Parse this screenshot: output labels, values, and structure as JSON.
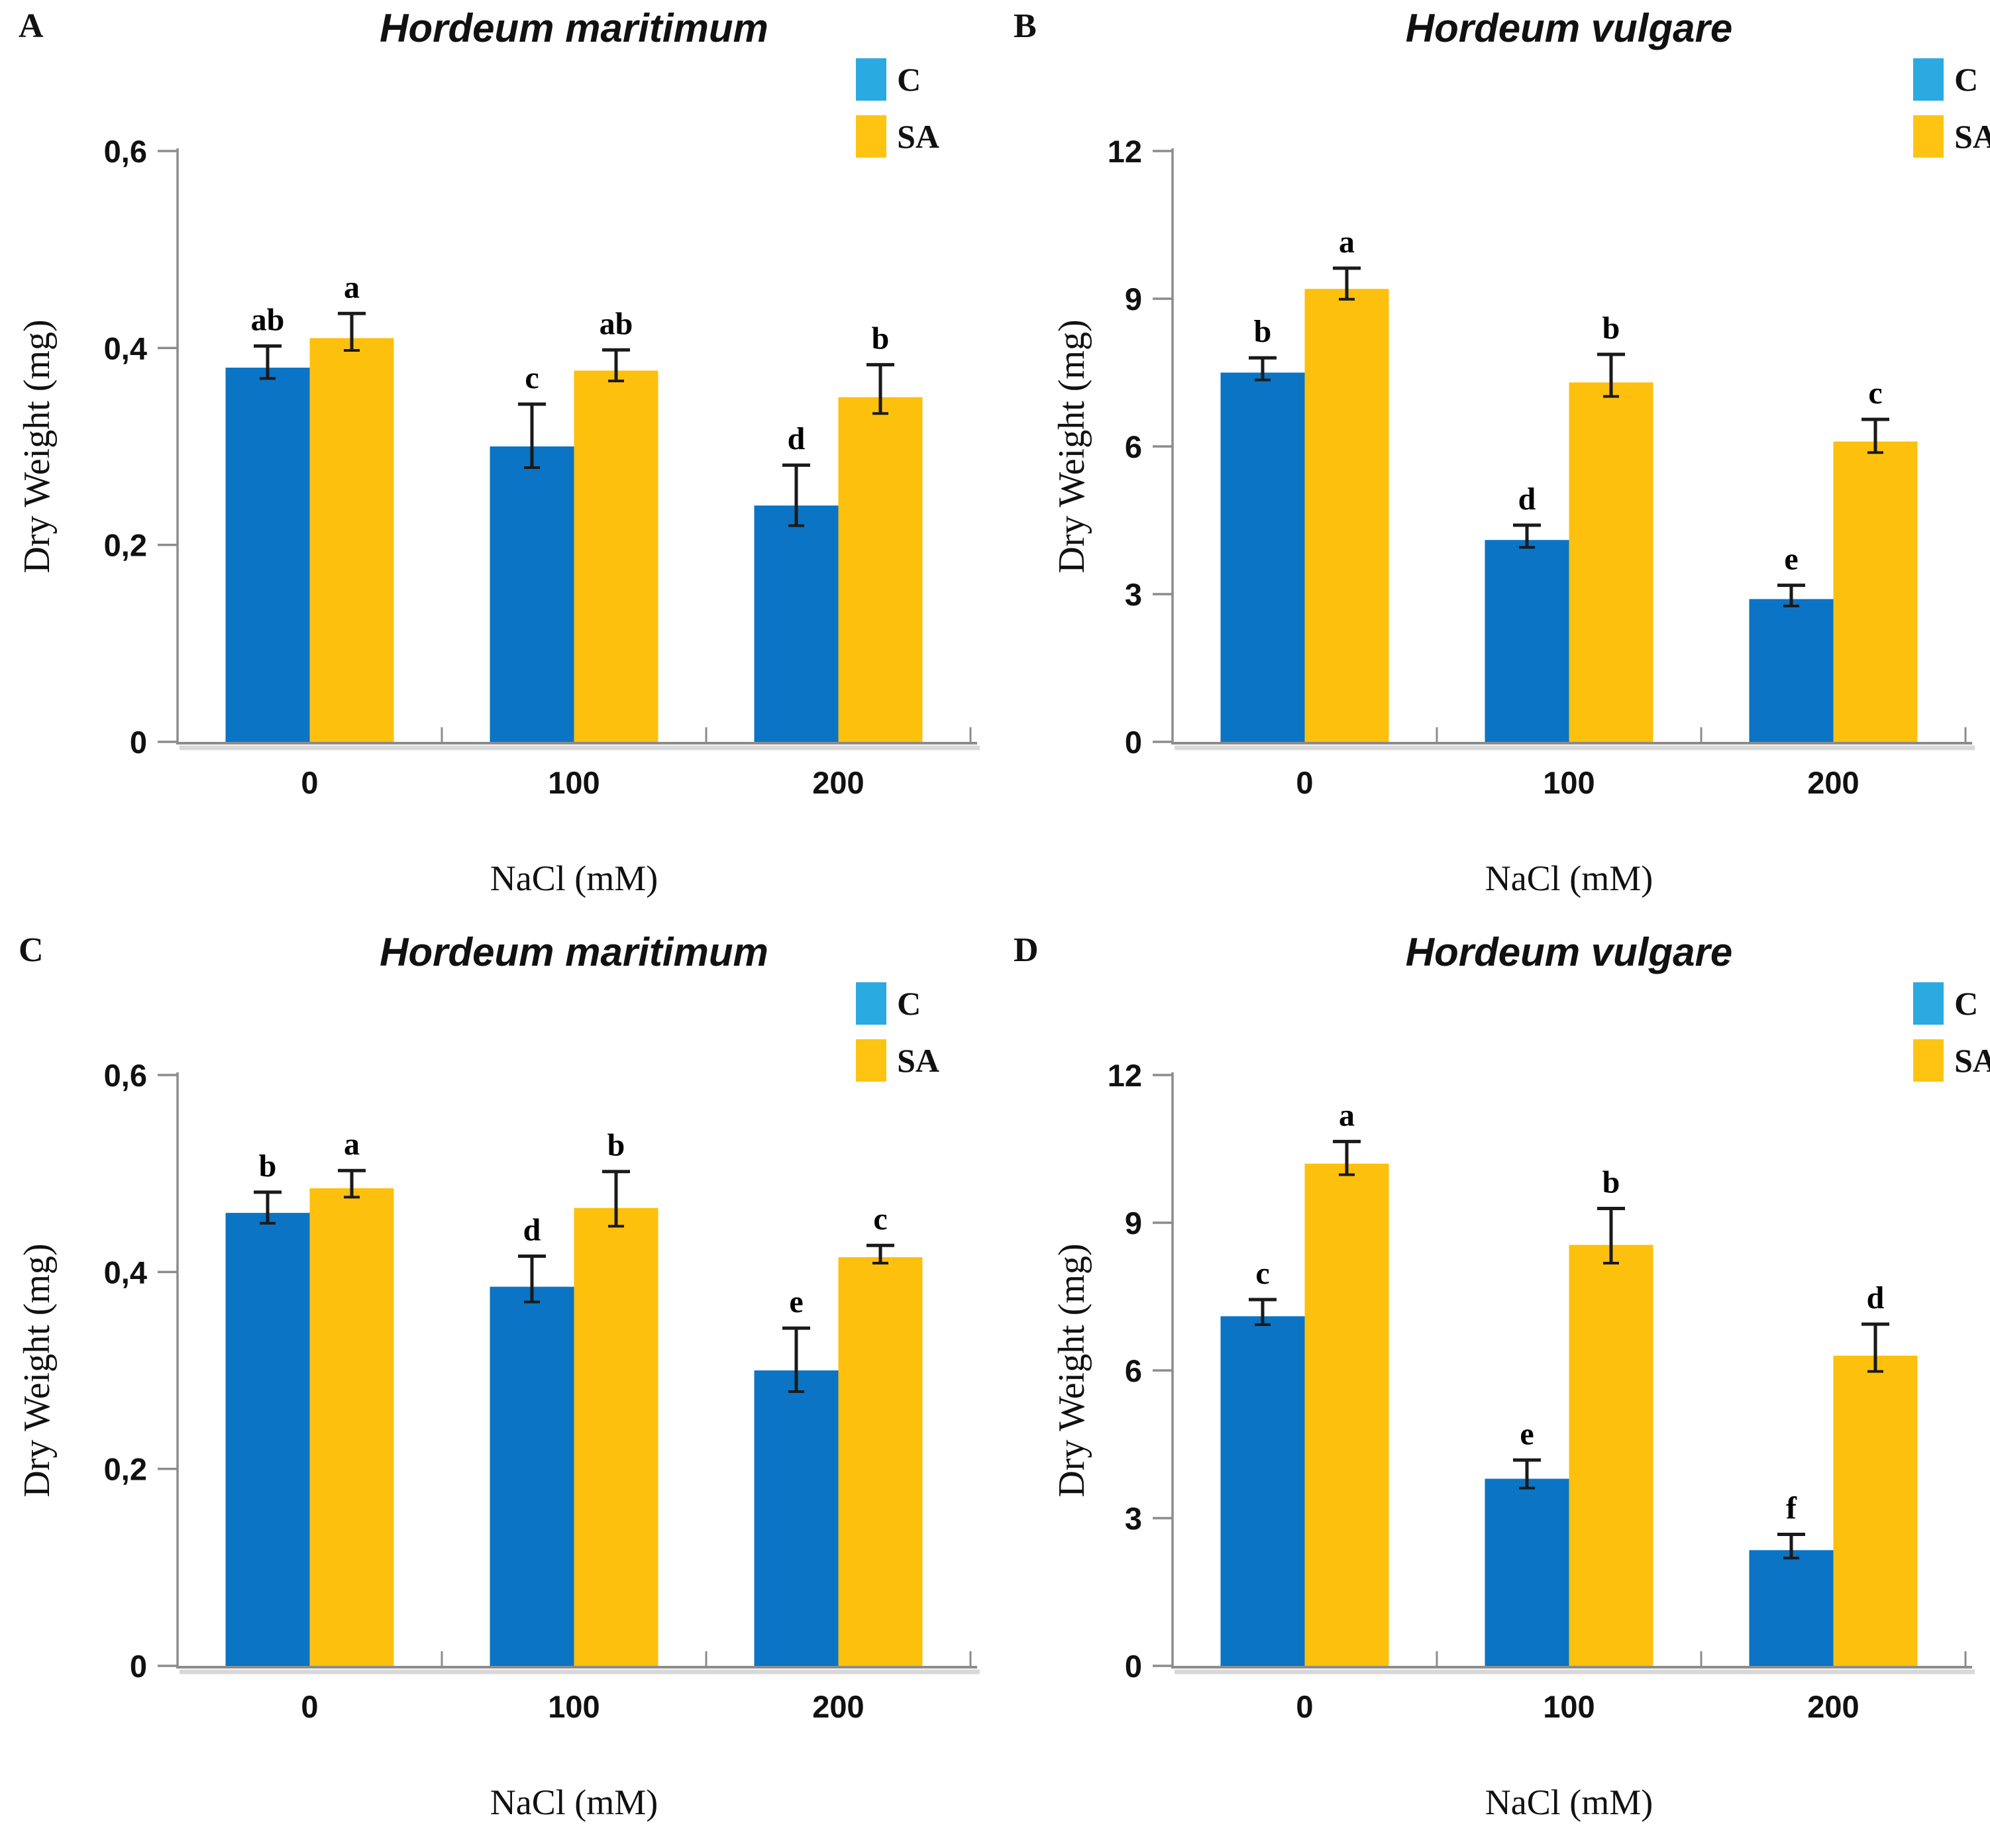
{
  "legend": {
    "c_label": "C",
    "sa_label": "SA"
  },
  "colors": {
    "bar_c": "#0B74C4",
    "bar_sa": "#FCC00D",
    "legend_c": "#2BAAE2",
    "legend_sa": "#FFC411",
    "axis": "#8C8C8C",
    "axis_shadow": "#D8D8D8",
    "error_bar": "#1a1a1a",
    "text": "#111111"
  },
  "chart_data": [
    {
      "panel": "A",
      "type": "bar",
      "title": "Hordeum maritimum",
      "xlabel": "NaCl (mM)",
      "ylabel": "Dry Weight (mg)",
      "categories": [
        "0",
        "100",
        "200"
      ],
      "ylim": [
        0,
        0.6
      ],
      "yticks": [
        0,
        0.2,
        0.4,
        0.6
      ],
      "ytick_labels": [
        "0",
        "0,2",
        "0,4",
        "0,6"
      ],
      "grid": false,
      "legend_position": "top-right",
      "series": [
        {
          "name": "C",
          "values": [
            0.38,
            0.3,
            0.24
          ],
          "errors": [
            0.022,
            0.043,
            0.041
          ],
          "sig_letters": [
            "ab",
            "c",
            "d"
          ]
        },
        {
          "name": "SA",
          "values": [
            0.41,
            0.377,
            0.35
          ],
          "errors": [
            0.025,
            0.021,
            0.033
          ],
          "sig_letters": [
            "a",
            "ab",
            "b"
          ]
        }
      ]
    },
    {
      "panel": "B",
      "type": "bar",
      "title": "Hordeum vulgare",
      "xlabel": "NaCl (mM)",
      "ylabel": "Dry Weight (mg)",
      "categories": [
        "0",
        "100",
        "200"
      ],
      "ylim": [
        0,
        12
      ],
      "yticks": [
        0,
        3,
        6,
        9,
        12
      ],
      "ytick_labels": [
        "0",
        "3",
        "6",
        "9",
        "12"
      ],
      "grid": false,
      "legend_position": "top-right",
      "series": [
        {
          "name": "C",
          "values": [
            7.5,
            4.1,
            2.9
          ],
          "errors": [
            0.3,
            0.3,
            0.28
          ],
          "sig_letters": [
            "b",
            "d",
            "e"
          ]
        },
        {
          "name": "SA",
          "values": [
            9.2,
            7.3,
            6.1
          ],
          "errors": [
            0.42,
            0.57,
            0.45
          ],
          "sig_letters": [
            "a",
            "b",
            "c"
          ]
        }
      ]
    },
    {
      "panel": "C",
      "type": "bar",
      "title": "Hordeum maritimum",
      "xlabel": "NaCl (mM)",
      "ylabel": "Dry Weight (mg)",
      "categories": [
        "0",
        "100",
        "200"
      ],
      "ylim": [
        0,
        0.6
      ],
      "yticks": [
        0,
        0.2,
        0.4,
        0.6
      ],
      "ytick_labels": [
        "0",
        "0,2",
        "0,4",
        "0,6"
      ],
      "grid": false,
      "legend_position": "top-right",
      "series": [
        {
          "name": "C",
          "values": [
            0.46,
            0.385,
            0.3
          ],
          "errors": [
            0.021,
            0.031,
            0.043
          ],
          "sig_letters": [
            "b",
            "d",
            "e"
          ]
        },
        {
          "name": "SA",
          "values": [
            0.485,
            0.465,
            0.415
          ],
          "errors": [
            0.018,
            0.037,
            0.012
          ],
          "sig_letters": [
            "a",
            "b",
            "c"
          ]
        }
      ]
    },
    {
      "panel": "D",
      "type": "bar",
      "title": "Hordeum vulgare",
      "xlabel": "NaCl (mM)",
      "ylabel": "Dry Weight (mg)",
      "categories": [
        "0",
        "100",
        "200"
      ],
      "ylim": [
        0,
        12
      ],
      "yticks": [
        0,
        3,
        6,
        9,
        12
      ],
      "ytick_labels": [
        "0",
        "3",
        "6",
        "9",
        "12"
      ],
      "grid": false,
      "legend_position": "top-right",
      "series": [
        {
          "name": "C",
          "values": [
            7.1,
            3.8,
            2.35
          ],
          "errors": [
            0.34,
            0.38,
            0.32
          ],
          "sig_letters": [
            "c",
            "e",
            "f"
          ]
        },
        {
          "name": "SA",
          "values": [
            10.2,
            8.55,
            6.3
          ],
          "errors": [
            0.45,
            0.74,
            0.64
          ],
          "sig_letters": [
            "a",
            "b",
            "d"
          ]
        }
      ]
    }
  ]
}
